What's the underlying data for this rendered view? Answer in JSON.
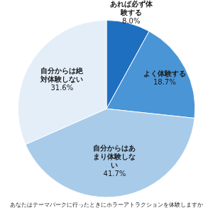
{
  "chart_data": {
    "type": "pie",
    "title": "あなたはテーマパークに行ったときにホラーアトラクションを体験しますか",
    "categories": [
      "あれば必ず体験する",
      "よく体験する",
      "自分からはあまり体験しない",
      "自分からは絶対体験しない"
    ],
    "values": [
      8.0,
      18.7,
      41.7,
      31.6
    ],
    "value_labels": [
      "8.0%",
      "18.7%",
      "41.7%",
      "31.6%"
    ],
    "colors": [
      "#1f6fc0",
      "#4a95d6",
      "#a8cbea",
      "#e3eef8"
    ],
    "data_labels": true
  }
}
